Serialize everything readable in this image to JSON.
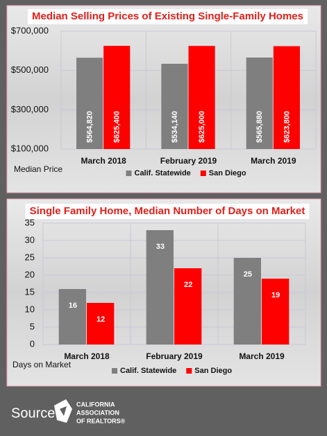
{
  "chart_data": [
    {
      "type": "bar",
      "title": "Median Selling Prices of Existing Single-Family Homes",
      "y_label": "Median Price",
      "categories": [
        "March 2018",
        "February 2019",
        "March 2019"
      ],
      "series": [
        {
          "name": "Calif. Statewide",
          "color": "#7f7f7f",
          "values": [
            564820,
            534140,
            565880
          ],
          "value_labels": [
            "$564,820",
            "$534,140",
            "$565,880"
          ]
        },
        {
          "name": "San Diego",
          "color": "#ff0000",
          "values": [
            625400,
            625000,
            623800
          ],
          "value_labels": [
            "$625,400",
            "$625,000",
            "$623,800"
          ]
        }
      ],
      "ylim": [
        100000,
        700000
      ],
      "yticks": [
        {
          "value": 100000,
          "label": "$100,000"
        },
        {
          "value": 300000,
          "label": "$300,000"
        },
        {
          "value": 500000,
          "label": "$500,000"
        },
        {
          "value": 700000,
          "label": "$700,000"
        }
      ],
      "grid": true
    },
    {
      "type": "bar",
      "title": "Single Family Home, Median Number of Days on Market",
      "y_label": "Days on Market",
      "categories": [
        "March 2018",
        "February 2019",
        "March 2019"
      ],
      "series": [
        {
          "name": "Calif. Statewide",
          "color": "#7f7f7f",
          "values": [
            16,
            33,
            25
          ]
        },
        {
          "name": "San Diego",
          "color": "#ff0000",
          "values": [
            12,
            22,
            19
          ]
        }
      ],
      "ylim": [
        0,
        35
      ],
      "yticks": [
        0,
        5,
        10,
        15,
        20,
        25,
        30,
        35
      ],
      "grid": true
    }
  ],
  "footer": {
    "source": "Source",
    "logo": [
      "CALIFORNIA",
      "ASSOCIATION",
      "OF REALTORS®"
    ]
  }
}
